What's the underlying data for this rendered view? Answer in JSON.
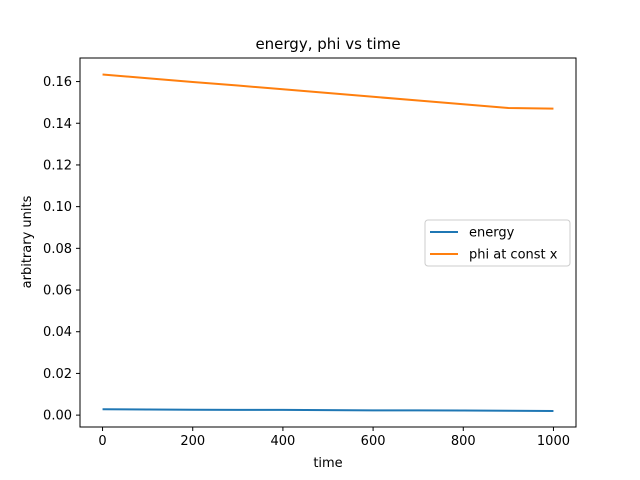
{
  "chart_data": {
    "type": "line",
    "title": "energy, phi vs time",
    "xlabel": "time",
    "ylabel": "arbitrary units",
    "xlim": [
      -50,
      1050
    ],
    "ylim": [
      -0.0057,
      0.1713
    ],
    "xticks": [
      0,
      200,
      400,
      600,
      800,
      1000
    ],
    "xtick_labels": [
      "0",
      "200",
      "400",
      "600",
      "800",
      "1000"
    ],
    "yticks": [
      0.0,
      0.02,
      0.04,
      0.06,
      0.08,
      0.1,
      0.12,
      0.14,
      0.16
    ],
    "ytick_labels": [
      "0.00",
      "0.02",
      "0.04",
      "0.06",
      "0.08",
      "0.10",
      "0.12",
      "0.14",
      "0.16"
    ],
    "grid": false,
    "legend_position": "center-right",
    "series": [
      {
        "name": "energy",
        "color": "#1f77b4",
        "x": [
          0,
          100,
          200,
          300,
          400,
          500,
          600,
          700,
          800,
          900,
          1000
        ],
        "y": [
          0.0028,
          0.0027,
          0.0026,
          0.0025,
          0.0025,
          0.0024,
          0.0023,
          0.0023,
          0.0022,
          0.0021,
          0.002
        ]
      },
      {
        "name": "phi at const x",
        "color": "#ff7f0e",
        "x": [
          0,
          100,
          200,
          300,
          400,
          500,
          600,
          700,
          800,
          900,
          1000
        ],
        "y": [
          0.1634,
          0.1616,
          0.1598,
          0.1581,
          0.1563,
          0.1545,
          0.1527,
          0.1509,
          0.1491,
          0.1473,
          0.147
        ]
      }
    ]
  }
}
